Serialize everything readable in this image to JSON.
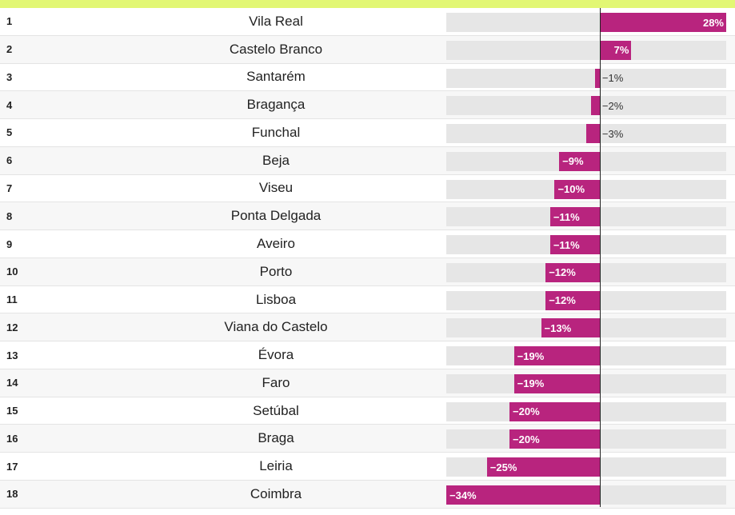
{
  "colors": {
    "top_accent": "#e2f774",
    "bar": "#b8247e",
    "track": "#e6e6e6",
    "zero_line": "#222222"
  },
  "chart_data": {
    "type": "bar",
    "orientation": "horizontal",
    "title": "",
    "xlabel": "",
    "ylabel": "",
    "xlim": [
      -34,
      28
    ],
    "grid": false,
    "legend": "none",
    "categories": [
      "Vila Real",
      "Castelo Branco",
      "Santarém",
      "Bragança",
      "Funchal",
      "Beja",
      "Viseu",
      "Ponta Delgada",
      "Aveiro",
      "Porto",
      "Lisboa",
      "Viana do Castelo",
      "Évora",
      "Faro",
      "Setúbal",
      "Braga",
      "Leiria",
      "Coimbra"
    ],
    "values": [
      28,
      7,
      -1,
      -2,
      -3,
      -9,
      -10,
      -11,
      -11,
      -12,
      -12,
      -13,
      -19,
      -19,
      -20,
      -20,
      -25,
      -34
    ],
    "ranks": [
      "1",
      "2",
      "3",
      "4",
      "5",
      "6",
      "7",
      "8",
      "9",
      "10",
      "11",
      "12",
      "13",
      "14",
      "15",
      "16",
      "17",
      "18"
    ],
    "value_labels": [
      "28%",
      "7%",
      "−1%",
      "−2%",
      "−3%",
      "−9%",
      "−10%",
      "−11%",
      "−11%",
      "−12%",
      "−12%",
      "−13%",
      "−19%",
      "−19%",
      "−20%",
      "−20%",
      "−25%",
      "−34%"
    ]
  }
}
